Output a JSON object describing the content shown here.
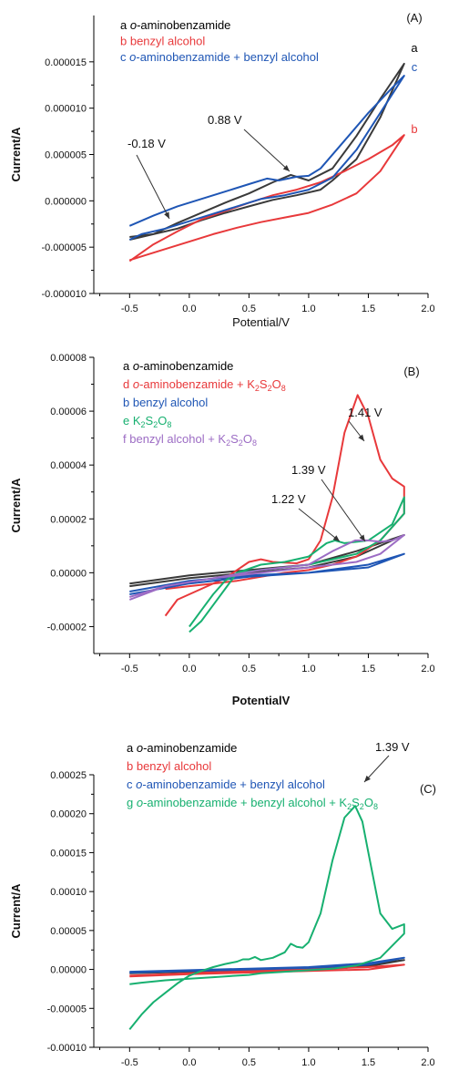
{
  "figure": {
    "panels": [
      {
        "panel_label": "(A)",
        "xlabel": "Potential/V",
        "ylabel": "Current/A",
        "legend": [
          {
            "key": "a",
            "parts": [
              {
                "t": "o",
                "it": true
              },
              {
                "t": "-aminobenzamide"
              }
            ],
            "color": "#000000"
          },
          {
            "key": "b",
            "parts": [
              {
                "t": "benzyl alcohol"
              }
            ],
            "color": "#e8393b"
          },
          {
            "key": "c",
            "parts": [
              {
                "t": "o",
                "it": true
              },
              {
                "t": "-aminobenzamide + benzyl alcohol"
              }
            ],
            "color": "#1f56b5"
          }
        ],
        "curve_end_labels": [
          {
            "text": "a",
            "color": "#000000"
          },
          {
            "text": "b",
            "color": "#e8393b"
          },
          {
            "text": "c",
            "color": "#1f56b5"
          }
        ],
        "annotations": [
          {
            "text": "-0.18 V",
            "x": -0.18
          },
          {
            "text": "0.88 V",
            "x": 0.88
          }
        ]
      },
      {
        "panel_label": "(B)",
        "xlabel": "PotentialV",
        "ylabel": "Current/A",
        "legend": [
          {
            "key": "a",
            "parts": [
              {
                "t": "o",
                "it": true
              },
              {
                "t": "-aminobenzamide"
              }
            ],
            "color": "#000000"
          },
          {
            "key": "d",
            "parts": [
              {
                "t": "o",
                "it": true
              },
              {
                "t": "-aminobenzamide + K"
              },
              {
                "t": "2",
                "sub": true
              },
              {
                "t": "S"
              },
              {
                "t": "2",
                "sub": true
              },
              {
                "t": "O"
              },
              {
                "t": "8",
                "sub": true
              }
            ],
            "color": "#e8393b"
          },
          {
            "key": "b",
            "parts": [
              {
                "t": "benzyl alcohol"
              }
            ],
            "color": "#1f56b5"
          },
          {
            "key": "e",
            "parts": [
              {
                "t": " K"
              },
              {
                "t": "2",
                "sub": true
              },
              {
                "t": "S"
              },
              {
                "t": "2",
                "sub": true
              },
              {
                "t": "O"
              },
              {
                "t": "8",
                "sub": true
              }
            ],
            "color": "#17b070"
          },
          {
            "key": "f",
            "parts": [
              {
                "t": "benzyl alcohol + K"
              },
              {
                "t": "2",
                "sub": true
              },
              {
                "t": "S"
              },
              {
                "t": "2",
                "sub": true
              },
              {
                "t": "O"
              },
              {
                "t": "8",
                "sub": true
              }
            ],
            "color": "#9c6cc4"
          }
        ],
        "curve_end_labels": [],
        "annotations": [
          {
            "text": "1.41 V",
            "x": 1.41
          },
          {
            "text": "1.39 V",
            "x": 1.39
          },
          {
            "text": "1.22 V",
            "x": 1.22
          }
        ]
      },
      {
        "panel_label": "(C)",
        "xlabel": "",
        "ylabel": "Current/A",
        "legend": [
          {
            "key": "a",
            "parts": [
              {
                "t": "o",
                "it": true
              },
              {
                "t": "-aminobenzamide"
              }
            ],
            "color": "#000000"
          },
          {
            "key": "b",
            "parts": [
              {
                "t": "benzyl alcohol"
              }
            ],
            "color": "#e8393b"
          },
          {
            "key": "c",
            "parts": [
              {
                "t": "o",
                "it": true
              },
              {
                "t": "-aminobenzamide + benzyl alcohol"
              }
            ],
            "color": "#1f56b5"
          },
          {
            "key": "g",
            "parts": [
              {
                "t": "o",
                "it": true
              },
              {
                "t": "-aminobenzamide + benzyl alcohol + K"
              },
              {
                "t": "2",
                "sub": true
              },
              {
                "t": "S"
              },
              {
                "t": "2",
                "sub": true
              },
              {
                "t": "O"
              },
              {
                "t": "8",
                "sub": true
              }
            ],
            "color": "#17b070"
          }
        ],
        "curve_end_labels": [],
        "annotations": [
          {
            "text": "1.39 V",
            "x": 1.39
          }
        ]
      }
    ]
  },
  "chart_data": [
    {
      "type": "line",
      "title": "",
      "xlabel": "Potential/V",
      "ylabel": "Current/A",
      "xlim": [
        -0.8,
        2.0
      ],
      "ylim": [
        -1e-05,
        2e-05
      ],
      "xticks": [
        -0.5,
        0.0,
        0.5,
        1.0,
        1.5,
        2.0
      ],
      "xtick_labels": [
        "-0.5",
        "0.0",
        "0.5",
        "1.0",
        "1.5",
        "2.0"
      ],
      "yticks": [
        -1e-05,
        -5e-06,
        0.0,
        5e-06,
        1e-05,
        1.5e-05
      ],
      "ytick_labels": [
        "-0.000010",
        "-0.000005",
        "0.000000",
        "0.000005",
        "0.000010",
        "0.000015"
      ],
      "series": [
        {
          "name": "a",
          "color": "#3a3a3a",
          "x": [
            -0.5,
            -0.3,
            -0.1,
            0.1,
            0.3,
            0.5,
            0.7,
            0.85,
            1.0,
            1.2,
            1.4,
            1.6,
            1.8,
            1.6,
            1.4,
            1.2,
            1.1,
            0.9,
            0.7,
            0.5,
            0.3,
            0.1,
            -0.1,
            -0.3,
            -0.5
          ],
          "y": [
            -4.2e-06,
            -3.6e-06,
            -2.4e-06,
            -1.3e-06,
            -2e-07,
            8e-07,
            2e-06,
            2.8e-06,
            2.2e-06,
            3.5e-06,
            7e-06,
            1.1e-05,
            1.48e-05,
            9e-06,
            4.5e-06,
            2.2e-06,
            1.2e-06,
            6e-07,
            1e-07,
            -6e-07,
            -1.3e-06,
            -2.1e-06,
            -3e-06,
            -3.6e-06,
            -3.9e-06
          ]
        },
        {
          "name": "b",
          "color": "#e8393b",
          "x": [
            -0.5,
            -0.3,
            -0.1,
            0.1,
            0.3,
            0.5,
            0.7,
            0.9,
            1.1,
            1.3,
            1.5,
            1.7,
            1.8,
            1.6,
            1.4,
            1.2,
            1.0,
            0.8,
            0.6,
            0.4,
            0.2,
            0.0,
            -0.2,
            -0.4,
            -0.5
          ],
          "y": [
            -6.5e-06,
            -4.7e-06,
            -3.3e-06,
            -2e-06,
            -1.1e-06,
            -2e-07,
            6e-07,
            1.2e-06,
            2e-06,
            3.2e-06,
            4.5e-06,
            6e-06,
            7.1e-06,
            3.2e-06,
            8e-07,
            -4e-07,
            -1.3e-06,
            -1.8e-06,
            -2.3e-06,
            -2.9e-06,
            -3.6e-06,
            -4.4e-06,
            -5.2e-06,
            -6e-06,
            -6.4e-06
          ]
        },
        {
          "name": "c",
          "color": "#1f56b5",
          "x": [
            -0.5,
            -0.3,
            -0.1,
            0.1,
            0.3,
            0.5,
            0.65,
            0.75,
            0.9,
            1.0,
            1.1,
            1.3,
            1.5,
            1.7,
            1.8,
            1.6,
            1.4,
            1.2,
            1.0,
            0.8,
            0.6,
            0.4,
            0.2,
            0.0,
            -0.2,
            -0.4,
            -0.5
          ],
          "y": [
            -2.7e-06,
            -1.6e-06,
            -6e-07,
            2e-07,
            1e-06,
            1.8e-06,
            2.4e-06,
            2.2e-06,
            2.6e-06,
            2.7e-06,
            3.5e-06,
            6.5e-06,
            9.5e-06,
            1.22e-05,
            1.35e-05,
            9.5e-06,
            5.5e-06,
            2.5e-06,
            1.2e-06,
            6e-07,
            2e-07,
            -6e-07,
            -1.4e-06,
            -2.2e-06,
            -3e-06,
            -3.6e-06,
            -4.2e-06
          ]
        }
      ]
    },
    {
      "type": "line",
      "title": "",
      "xlabel": "PotentialV",
      "ylabel": "Current/A",
      "xlim": [
        -0.8,
        2.0
      ],
      "ylim": [
        -3e-05,
        8e-05
      ],
      "xticks": [
        -0.5,
        0.0,
        0.5,
        1.0,
        1.5,
        2.0
      ],
      "xtick_labels": [
        "-0.5",
        "0.0",
        "0.5",
        "1.0",
        "1.5",
        "2.0"
      ],
      "yticks": [
        -2e-05,
        0.0,
        2e-05,
        4e-05,
        6e-05,
        8e-05
      ],
      "ytick_labels": [
        "-0.00002",
        "0.00000",
        "0.00002",
        "0.00004",
        "0.00006",
        "0.00008"
      ],
      "series": [
        {
          "name": "a",
          "color": "#3a3a3a",
          "x": [
            -0.5,
            0.0,
            0.5,
            1.0,
            1.4,
            1.8,
            1.4,
            1.0,
            0.5,
            0.0,
            -0.5
          ],
          "y": [
            -4e-06,
            -1e-06,
            1e-06,
            3e-06,
            8e-06,
            1.4e-05,
            6e-06,
            2e-06,
            0.0,
            -2e-06,
            -5e-06
          ]
        },
        {
          "name": "d",
          "color": "#e8393b",
          "x": [
            -0.2,
            -0.1,
            0.1,
            0.3,
            0.5,
            0.6,
            0.7,
            0.9,
            1.0,
            1.1,
            1.2,
            1.3,
            1.41,
            1.5,
            1.6,
            1.7,
            1.8,
            1.8,
            1.6,
            1.4,
            1.2,
            1.0,
            0.8,
            0.6,
            0.4,
            0.2,
            0.0,
            -0.2
          ],
          "y": [
            -1.6e-05,
            -1e-05,
            -6e-06,
            -2e-06,
            4e-06,
            5e-06,
            4e-06,
            3.5e-06,
            5e-06,
            1.2e-05,
            2.8e-05,
            5.2e-05,
            6.6e-05,
            5.8e-05,
            4.2e-05,
            3.5e-05,
            3.2e-05,
            2.2e-05,
            1.2e-05,
            6e-06,
            3e-06,
            1e-06,
            0.0,
            -1.5e-06,
            -3e-06,
            -4e-06,
            -5e-06,
            -6e-06
          ]
        },
        {
          "name": "b",
          "color": "#1f56b5",
          "x": [
            -0.5,
            0.0,
            0.5,
            1.0,
            1.5,
            1.8,
            1.5,
            1.0,
            0.5,
            0.0,
            -0.5
          ],
          "y": [
            -7e-06,
            -3e-06,
            -1e-06,
            0.0,
            3e-06,
            7e-06,
            2e-06,
            0.0,
            -1.5e-06,
            -4e-06,
            -8e-06
          ]
        },
        {
          "name": "e",
          "color": "#17b070",
          "x": [
            0.0,
            0.1,
            0.2,
            0.3,
            0.4,
            0.6,
            0.8,
            1.0,
            1.15,
            1.22,
            1.3,
            1.5,
            1.7,
            1.8,
            1.8,
            1.6,
            1.4,
            1.2,
            1.0,
            0.8,
            0.6,
            0.4,
            0.3,
            0.2,
            0.1,
            0.0
          ],
          "y": [
            -2.2e-05,
            -1.8e-05,
            -1.2e-05,
            -6e-06,
            0.0,
            3e-06,
            4e-06,
            6e-06,
            1.1e-05,
            1.2e-05,
            1.1e-05,
            1.2e-05,
            1.8e-05,
            2.8e-05,
            2.2e-05,
            1.2e-05,
            7e-06,
            5e-06,
            3e-06,
            2e-06,
            1e-06,
            0.0,
            -3e-06,
            -8e-06,
            -1.4e-05,
            -2e-05
          ]
        },
        {
          "name": "f",
          "color": "#9c6cc4",
          "x": [
            -0.5,
            -0.2,
            0.2,
            0.6,
            1.0,
            1.2,
            1.39,
            1.5,
            1.6,
            1.7,
            1.8,
            1.6,
            1.4,
            1.0,
            0.6,
            0.2,
            -0.2,
            -0.5
          ],
          "y": [
            -9e-06,
            -5e-06,
            -2e-06,
            1e-06,
            3e-06,
            8e-06,
            1.2e-05,
            1.2e-05,
            1.15e-05,
            1.2e-05,
            1.4e-05,
            7e-06,
            4e-06,
            2e-06,
            0.0,
            -2e-06,
            -5e-06,
            -1e-05
          ]
        }
      ]
    },
    {
      "type": "line",
      "title": "",
      "xlabel": "",
      "ylabel": "Current/A",
      "xlim": [
        -0.8,
        2.0
      ],
      "ylim": [
        -0.0001,
        0.00025
      ],
      "xticks": [
        -0.5,
        0.0,
        0.5,
        1.0,
        1.5,
        2.0
      ],
      "xtick_labels": [
        "-0.5",
        "0.0",
        "0.5",
        "1.0",
        "1.5",
        "2.0"
      ],
      "yticks": [
        -0.0001,
        -5e-05,
        0.0,
        5e-05,
        0.0001,
        0.00015,
        0.0002,
        0.00025
      ],
      "ytick_labels": [
        "-0.00010",
        "-0.00005",
        "0.00000",
        "0.00005",
        "0.00010",
        "0.00015",
        "0.00020",
        "0.00025"
      ],
      "series": [
        {
          "name": "a",
          "color": "#3a3a3a",
          "x": [
            -0.5,
            0.0,
            0.5,
            1.0,
            1.5,
            1.8,
            1.5,
            1.0,
            0.5,
            0.0,
            -0.5
          ],
          "y": [
            -4e-06,
            -2e-06,
            0.0,
            2e-06,
            6e-06,
            1.2e-05,
            4e-06,
            1e-06,
            -1e-06,
            -3e-06,
            -5e-06
          ]
        },
        {
          "name": "b",
          "color": "#e8393b",
          "x": [
            -0.5,
            0.0,
            0.5,
            1.0,
            1.5,
            1.8,
            1.5,
            1.0,
            0.5,
            0.0,
            -0.5
          ],
          "y": [
            -8e-06,
            -5e-06,
            -2e-06,
            0.0,
            3e-06,
            6e-06,
            0.0,
            -2e-06,
            -4e-06,
            -6e-06,
            -9e-06
          ]
        },
        {
          "name": "c",
          "color": "#1f56b5",
          "x": [
            -0.5,
            0.0,
            0.5,
            1.0,
            1.5,
            1.8,
            1.5,
            1.0,
            0.5,
            0.0,
            -0.5
          ],
          "y": [
            -3e-06,
            -1e-06,
            1e-06,
            3e-06,
            8e-06,
            1.5e-05,
            6e-06,
            2e-06,
            0.0,
            -2e-06,
            -4e-06
          ]
        },
        {
          "name": "g",
          "color": "#17b070",
          "x": [
            -0.5,
            -0.4,
            -0.3,
            -0.2,
            -0.1,
            0.0,
            0.1,
            0.2,
            0.3,
            0.4,
            0.45,
            0.5,
            0.55,
            0.6,
            0.7,
            0.8,
            0.85,
            0.9,
            0.95,
            1.0,
            1.1,
            1.2,
            1.3,
            1.39,
            1.45,
            1.5,
            1.6,
            1.7,
            1.8,
            1.8,
            1.6,
            1.4,
            1.2,
            1.0,
            0.8,
            0.6,
            0.5,
            0.4,
            0.2,
            0.0,
            -0.2,
            -0.4,
            -0.5
          ],
          "y": [
            -7.7e-05,
            -5.8e-05,
            -4.2e-05,
            -3e-05,
            -1.8e-05,
            -8e-06,
            -2e-06,
            3e-06,
            7e-06,
            1e-05,
            1.3e-05,
            1.3e-05,
            1.6e-05,
            1.2e-05,
            1.5e-05,
            2.2e-05,
            3.3e-05,
            2.9e-05,
            2.8e-05,
            3.5e-05,
            7.2e-05,
            0.00014,
            0.000195,
            0.00021,
            0.00019,
            0.00015,
            7.2e-05,
            5.2e-05,
            5.8e-05,
            4.6e-05,
            1.5e-05,
            5e-06,
            1e-06,
            -1e-06,
            -3e-06,
            -5e-06,
            -7e-06,
            -8e-06,
            -1e-05,
            -1.2e-05,
            -1.4e-05,
            -1.7e-05,
            -1.9e-05
          ]
        }
      ]
    }
  ]
}
